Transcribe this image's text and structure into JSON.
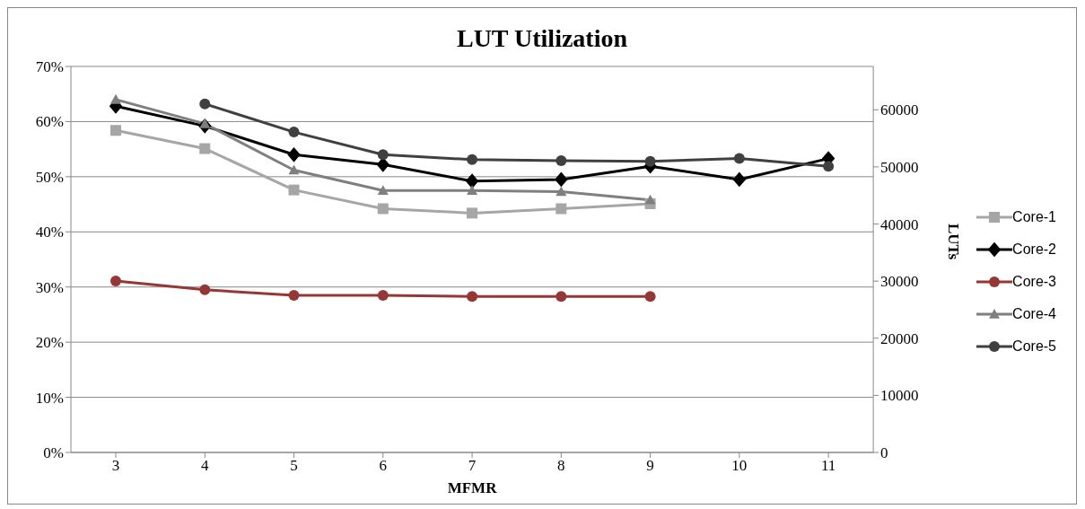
{
  "chart_data": {
    "type": "line",
    "title": "LUT Utilization",
    "xlabel": "MFMR",
    "y2label": "LUTs",
    "categories": [
      "3",
      "4",
      "5",
      "6",
      "7",
      "8",
      "9",
      "10",
      "11"
    ],
    "series": [
      {
        "name": "Core-1",
        "color": "#a6a6a6",
        "marker": "square",
        "values": [
          58.4,
          55.1,
          47.6,
          44.2,
          43.4,
          44.2,
          45.1,
          null,
          null
        ]
      },
      {
        "name": "Core-2",
        "color": "#000000",
        "marker": "diamond",
        "values": [
          62.8,
          59.2,
          54.0,
          52.2,
          49.2,
          49.5,
          51.9,
          49.5,
          53.3
        ]
      },
      {
        "name": "Core-3",
        "color": "#953735",
        "marker": "circle",
        "values": [
          31.1,
          29.5,
          28.5,
          28.5,
          28.3,
          28.3,
          28.3,
          null,
          null
        ]
      },
      {
        "name": "Core-4",
        "color": "#7f7f7f",
        "marker": "triangle",
        "values": [
          64.0,
          59.6,
          51.2,
          47.5,
          47.5,
          47.3,
          45.8,
          null,
          null
        ]
      },
      {
        "name": "Core-5",
        "color": "#404040",
        "marker": "circle",
        "values": [
          null,
          63.2,
          58.1,
          54.0,
          53.1,
          52.9,
          52.8,
          53.3,
          51.9
        ]
      }
    ],
    "ylim": [
      0,
      70
    ],
    "yticks": [
      {
        "value": 0,
        "label": "0%"
      },
      {
        "value": 10,
        "label": "10%"
      },
      {
        "value": 20,
        "label": "20%"
      },
      {
        "value": 30,
        "label": "30%"
      },
      {
        "value": 40,
        "label": "40%"
      },
      {
        "value": 50,
        "label": "50%"
      },
      {
        "value": 60,
        "label": "60%"
      },
      {
        "value": 70,
        "label": "70%"
      }
    ],
    "y2lim": [
      0,
      67584
    ],
    "y2ticks": [
      0,
      10000,
      20000,
      30000,
      40000,
      50000,
      60000
    ],
    "grid": "y",
    "legend": "right",
    "line_style": "solid"
  }
}
